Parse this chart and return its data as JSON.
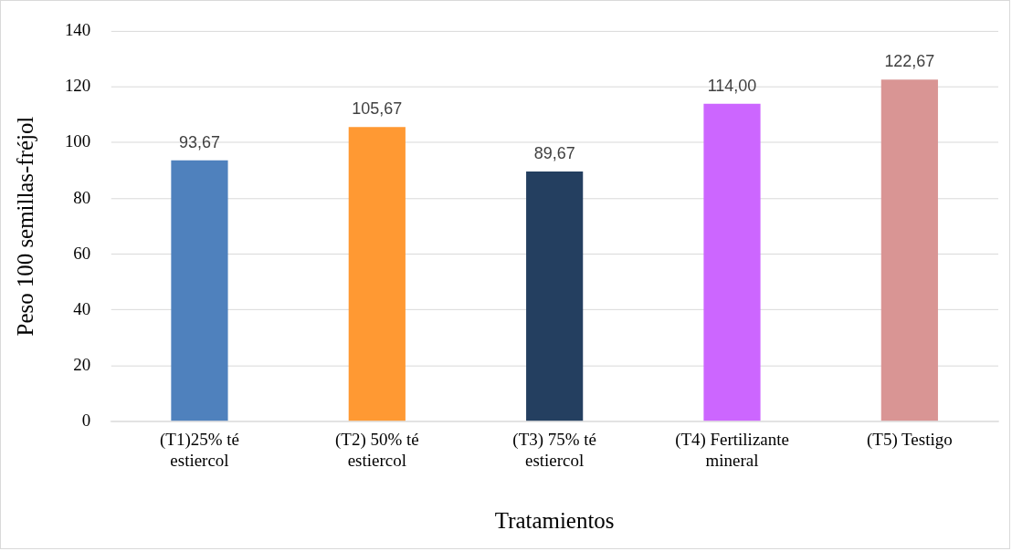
{
  "chart_data": {
    "type": "bar",
    "xlabel": "Tratamientos",
    "ylabel": "Peso 100 semillas-fréjol",
    "categories": [
      "(T1)25% té estiercol",
      "(T2) 50% té estiercol",
      "(T3) 75% té estiercol",
      "(T4) Fertilizante mineral",
      "(T5) Testigo"
    ],
    "values": [
      93.67,
      105.67,
      89.67,
      114.0,
      122.67
    ],
    "colors": [
      "#4f81bd",
      "#ff9933",
      "#243f60",
      "#cc66ff",
      "#d99594"
    ],
    "value_labels": [
      "93,67",
      "105,67",
      "89,67",
      "114,00",
      "122,67"
    ],
    "ylim": [
      0,
      140
    ],
    "yticks": [
      0,
      20,
      40,
      60,
      80,
      100,
      120,
      140
    ],
    "grid": "y",
    "legend": false
  }
}
